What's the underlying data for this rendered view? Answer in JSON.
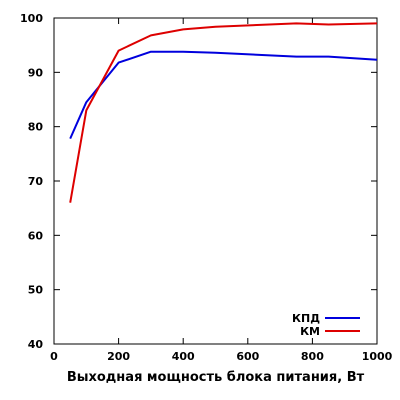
{
  "chart_data": {
    "type": "line",
    "xlabel": "Выходная мощность блока питания, Вт",
    "ylabel": "",
    "xlim": [
      0,
      1000
    ],
    "ylim": [
      40,
      100
    ],
    "x_ticks": [
      0,
      200,
      400,
      600,
      800,
      1000
    ],
    "y_ticks": [
      40,
      50,
      60,
      70,
      80,
      90,
      100
    ],
    "grid": false,
    "legend_position": "bottom-right",
    "series": [
      {
        "name": "КПД",
        "color": "#0000dd",
        "x": [
          50,
          100,
          200,
          300,
          400,
          500,
          750,
          850,
          1000
        ],
        "y": [
          77.8,
          84.5,
          91.8,
          93.8,
          93.8,
          93.6,
          92.9,
          92.9,
          92.3
        ]
      },
      {
        "name": "КМ",
        "color": "#dd0000",
        "x": [
          50,
          100,
          200,
          300,
          400,
          500,
          750,
          850,
          1000
        ],
        "y": [
          66.0,
          83.0,
          94.0,
          96.8,
          97.9,
          98.4,
          99.0,
          98.8,
          99.0
        ]
      }
    ]
  }
}
